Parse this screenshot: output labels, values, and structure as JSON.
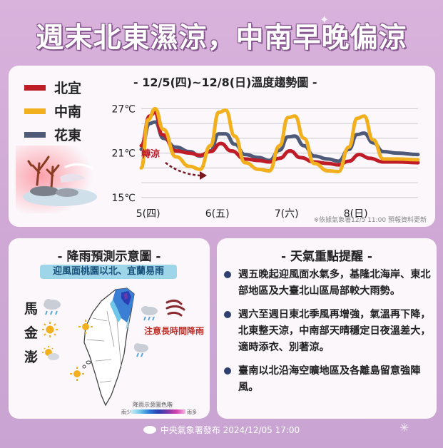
{
  "title": "週末北東濕涼，中南早晚偏涼",
  "legend": [
    {
      "label": "北宜",
      "color": "#c01c28"
    },
    {
      "label": "中南",
      "color": "#f2b01e"
    },
    {
      "label": "花東",
      "color": "#4e5a78"
    }
  ],
  "chart_title": "- 12/5(四)~12/8(日)溫度趨勢圖 -",
  "annotation": "轉涼",
  "chart_note": "※依據氣象署12/5 11:00 預報資料更新",
  "chart_data": {
    "type": "line",
    "title": "12/5(四)~12/8(日)溫度趨勢圖",
    "y_ticks": [
      "27℃",
      "21℃",
      "15℃"
    ],
    "y_tick_values": [
      27,
      21,
      15
    ],
    "ylim": [
      14.5,
      28
    ],
    "x_range": [
      0,
      4
    ],
    "x_ticks": [
      {
        "label": "5(四)",
        "x": 0.1
      },
      {
        "label": "6(五)",
        "x": 1.1
      },
      {
        "label": "7(六)",
        "x": 2.1
      },
      {
        "label": "8(日)",
        "x": 3.1
      }
    ],
    "grid": true,
    "series": [
      {
        "name": "北宜",
        "color": "#c01c28",
        "points": [
          [
            0,
            22.0
          ],
          [
            0.12,
            26.0
          ],
          [
            0.2,
            26.5
          ],
          [
            0.3,
            23.5
          ],
          [
            0.5,
            21.3
          ],
          [
            0.7,
            21.0
          ],
          [
            0.85,
            20.7
          ],
          [
            1.0,
            21.2
          ],
          [
            1.15,
            22.3
          ],
          [
            1.3,
            21.3
          ],
          [
            1.5,
            20.2
          ],
          [
            1.7,
            20.0
          ],
          [
            1.85,
            19.8
          ],
          [
            2.0,
            20.3
          ],
          [
            2.15,
            21.3
          ],
          [
            2.3,
            20.4
          ],
          [
            2.5,
            19.8
          ],
          [
            2.7,
            19.6
          ],
          [
            2.85,
            19.4
          ],
          [
            3.0,
            19.9
          ],
          [
            3.15,
            20.8
          ],
          [
            3.3,
            20.3
          ],
          [
            3.5,
            19.8
          ],
          [
            3.7,
            19.8
          ],
          [
            4.0,
            19.7
          ]
        ]
      },
      {
        "name": "中南",
        "color": "#f2b01e",
        "points": [
          [
            0,
            19.0
          ],
          [
            0.1,
            25.5
          ],
          [
            0.2,
            27.0
          ],
          [
            0.32,
            24.2
          ],
          [
            0.5,
            20.5
          ],
          [
            0.7,
            19.2
          ],
          [
            0.85,
            18.8
          ],
          [
            1.0,
            22.0
          ],
          [
            1.12,
            26.5
          ],
          [
            1.22,
            26.8
          ],
          [
            1.35,
            23.3
          ],
          [
            1.5,
            19.7
          ],
          [
            1.7,
            18.8
          ],
          [
            1.85,
            18.6
          ],
          [
            2.0,
            22.0
          ],
          [
            2.12,
            25.8
          ],
          [
            2.22,
            26.0
          ],
          [
            2.35,
            23.0
          ],
          [
            2.5,
            19.6
          ],
          [
            2.7,
            18.6
          ],
          [
            2.85,
            18.5
          ],
          [
            3.0,
            21.8
          ],
          [
            3.12,
            25.7
          ],
          [
            3.22,
            26.0
          ],
          [
            3.35,
            22.8
          ],
          [
            3.5,
            20.2
          ],
          [
            3.7,
            20.2
          ],
          [
            4.0,
            20.1
          ]
        ]
      },
      {
        "name": "花東",
        "color": "#4e5a78",
        "points": [
          [
            0,
            21.5
          ],
          [
            0.12,
            25.0
          ],
          [
            0.2,
            25.2
          ],
          [
            0.32,
            23.0
          ],
          [
            0.5,
            21.8
          ],
          [
            0.7,
            21.2
          ],
          [
            0.85,
            20.6
          ],
          [
            1.0,
            21.3
          ],
          [
            1.12,
            23.6
          ],
          [
            1.22,
            23.6
          ],
          [
            1.35,
            22.2
          ],
          [
            1.5,
            20.8
          ],
          [
            1.7,
            20.4
          ],
          [
            1.85,
            20.0
          ],
          [
            2.0,
            21.4
          ],
          [
            2.12,
            23.2
          ],
          [
            2.22,
            23.3
          ],
          [
            2.35,
            22.0
          ],
          [
            2.5,
            20.6
          ],
          [
            2.7,
            20.2
          ],
          [
            2.85,
            19.9
          ],
          [
            3.0,
            21.5
          ],
          [
            3.12,
            23.5
          ],
          [
            3.22,
            23.7
          ],
          [
            3.35,
            22.4
          ],
          [
            3.5,
            21.2
          ],
          [
            3.7,
            21.0
          ],
          [
            4.0,
            20.8
          ]
        ]
      }
    ]
  },
  "rain": {
    "title": "- 降雨預測示意圖 -",
    "subtitle": "迎風面桃園以北、宜蘭易雨",
    "islands": [
      "馬",
      "金",
      "澎"
    ],
    "warning": "注意長時間降雨",
    "legend_title": "降雨示意圖色階",
    "less": "雨少",
    "more": "雨多"
  },
  "tips": {
    "title": "- 天氣重點提醒 -",
    "items": [
      "週五晚起迎風面水氣多，基隆北海岸、東北部地區及大臺北山區局部較大雨勢。",
      "週六至週日東北季風再增強，氣溫再下降，北東整天涼，中南部天晴穩定日夜溫差大，適時添衣、別著涼。",
      "臺南以北沿海空曠地區及各離島留意強陣風。"
    ]
  },
  "footer": "中央氣象署發布 2024/12/05 17:00"
}
